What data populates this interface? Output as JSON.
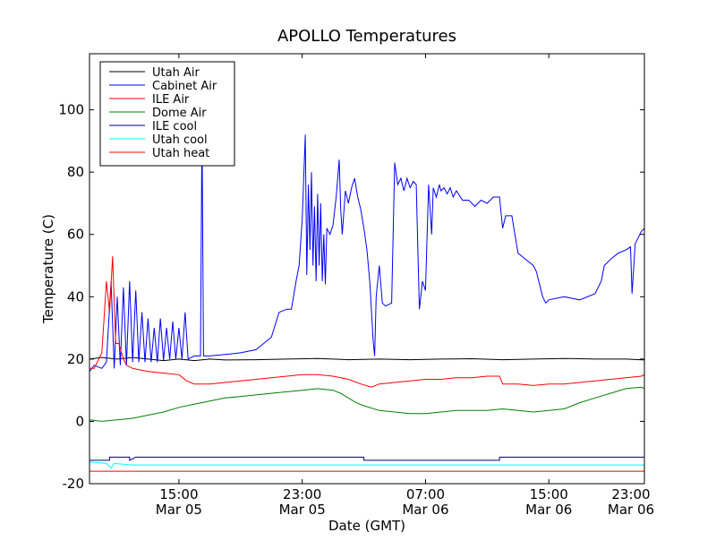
{
  "chart_data": {
    "type": "line",
    "title": "APOLLO Temperatures",
    "xlabel": "Date (GMT)",
    "ylabel": "Temperature (C)",
    "xlim": [
      9.2,
      45.2
    ],
    "ylim": [
      -20,
      118
    ],
    "grid": false,
    "legend_position": "top-left",
    "x_ticks": [
      {
        "x": 15,
        "line1": "15:00",
        "line2": "Mar 05"
      },
      {
        "x": 23,
        "line1": "23:00",
        "line2": "Mar 05"
      },
      {
        "x": 31,
        "line1": "07:00",
        "line2": "Mar 06"
      },
      {
        "x": 39,
        "line1": "15:00",
        "line2": "Mar 06"
      },
      {
        "x": 47,
        "line1": "23:00",
        "line2": "Mar 06"
      }
    ],
    "y_ticks": [
      -20,
      0,
      20,
      40,
      60,
      80,
      100
    ],
    "series": [
      {
        "name": "Utah Air",
        "color": "#000000",
        "points": [
          [
            9.2,
            20
          ],
          [
            10,
            20.5
          ],
          [
            11,
            20
          ],
          [
            12,
            20.5
          ],
          [
            13,
            20
          ],
          [
            14,
            19.5
          ],
          [
            15,
            20
          ],
          [
            16,
            19.5
          ],
          [
            17,
            20
          ],
          [
            18,
            19.7
          ],
          [
            20,
            19.8
          ],
          [
            22,
            20
          ],
          [
            24,
            20.2
          ],
          [
            26,
            19.8
          ],
          [
            28,
            20
          ],
          [
            30,
            19.8
          ],
          [
            32,
            20
          ],
          [
            34,
            20.1
          ],
          [
            36,
            19.8
          ],
          [
            38,
            20
          ],
          [
            40,
            20.2
          ],
          [
            42,
            20
          ],
          [
            44,
            20
          ],
          [
            45.2,
            19.7
          ]
        ]
      },
      {
        "name": "Cabinet Air",
        "color": "#0000ff",
        "points": [
          [
            9.2,
            16
          ],
          [
            9.5,
            18
          ],
          [
            10,
            17
          ],
          [
            10.3,
            19
          ],
          [
            10.6,
            45
          ],
          [
            10.8,
            17
          ],
          [
            11,
            40
          ],
          [
            11.2,
            18
          ],
          [
            11.4,
            43
          ],
          [
            11.6,
            18
          ],
          [
            11.8,
            45
          ],
          [
            12,
            19
          ],
          [
            12.2,
            42
          ],
          [
            12.4,
            19
          ],
          [
            12.6,
            35
          ],
          [
            12.8,
            19
          ],
          [
            13,
            33
          ],
          [
            13.2,
            19
          ],
          [
            13.4,
            30
          ],
          [
            13.6,
            19
          ],
          [
            13.8,
            33
          ],
          [
            14,
            19.5
          ],
          [
            14.2,
            30
          ],
          [
            14.4,
            20
          ],
          [
            14.6,
            32
          ],
          [
            14.8,
            20
          ],
          [
            15,
            30
          ],
          [
            15.2,
            20
          ],
          [
            15.4,
            35
          ],
          [
            15.6,
            20
          ],
          [
            15.8,
            20.5
          ],
          [
            16,
            21
          ],
          [
            16.4,
            21
          ],
          [
            16.5,
            95
          ],
          [
            16.6,
            21
          ],
          [
            17,
            21
          ],
          [
            18,
            21.5
          ],
          [
            19,
            22
          ],
          [
            20,
            23
          ],
          [
            20.5,
            25
          ],
          [
            21,
            27
          ],
          [
            21.5,
            35
          ],
          [
            22,
            36
          ],
          [
            22.3,
            36
          ],
          [
            22.6,
            45
          ],
          [
            22.8,
            50
          ],
          [
            23,
            65
          ],
          [
            23.2,
            92
          ],
          [
            23.3,
            47
          ],
          [
            23.4,
            76
          ],
          [
            23.5,
            55
          ],
          [
            23.6,
            80
          ],
          [
            23.7,
            50
          ],
          [
            23.8,
            69
          ],
          [
            23.9,
            45
          ],
          [
            24,
            73
          ],
          [
            24.1,
            50
          ],
          [
            24.2,
            70
          ],
          [
            24.3,
            45
          ],
          [
            24.4,
            60
          ],
          [
            24.5,
            44
          ],
          [
            24.6,
            62
          ],
          [
            24.8,
            60
          ],
          [
            25,
            63
          ],
          [
            25.2,
            72
          ],
          [
            25.4,
            84
          ],
          [
            25.5,
            68
          ],
          [
            25.6,
            60
          ],
          [
            25.8,
            74
          ],
          [
            26,
            70
          ],
          [
            26.2,
            75
          ],
          [
            26.4,
            78
          ],
          [
            26.6,
            72
          ],
          [
            26.8,
            68
          ],
          [
            27,
            62
          ],
          [
            27.2,
            55
          ],
          [
            27.4,
            44
          ],
          [
            27.6,
            26
          ],
          [
            27.7,
            21
          ],
          [
            27.8,
            40
          ],
          [
            28,
            50
          ],
          [
            28.2,
            38
          ],
          [
            28.4,
            37
          ],
          [
            28.8,
            38
          ],
          [
            29,
            83
          ],
          [
            29.2,
            76
          ],
          [
            29.4,
            78
          ],
          [
            29.6,
            74
          ],
          [
            29.8,
            78
          ],
          [
            30,
            75
          ],
          [
            30.2,
            77
          ],
          [
            30.4,
            76
          ],
          [
            30.5,
            56
          ],
          [
            30.6,
            36
          ],
          [
            30.8,
            45
          ],
          [
            31,
            42
          ],
          [
            31.2,
            76
          ],
          [
            31.4,
            60
          ],
          [
            31.5,
            75
          ],
          [
            31.7,
            72
          ],
          [
            31.9,
            76
          ],
          [
            32,
            74
          ],
          [
            32.2,
            75
          ],
          [
            32.4,
            73
          ],
          [
            32.6,
            75
          ],
          [
            32.8,
            72
          ],
          [
            33,
            74
          ],
          [
            33.4,
            71
          ],
          [
            33.8,
            71
          ],
          [
            34.2,
            69
          ],
          [
            34.6,
            71
          ],
          [
            35,
            70
          ],
          [
            35.4,
            72
          ],
          [
            35.8,
            72
          ],
          [
            36,
            62
          ],
          [
            36.2,
            66
          ],
          [
            36.6,
            66
          ],
          [
            36.8,
            60
          ],
          [
            37,
            54
          ],
          [
            37.5,
            52
          ],
          [
            38,
            50
          ],
          [
            38.2,
            48
          ],
          [
            38.6,
            40
          ],
          [
            38.8,
            38
          ],
          [
            39,
            39
          ],
          [
            40,
            40
          ],
          [
            41,
            39
          ],
          [
            42,
            41
          ],
          [
            42.4,
            45
          ],
          [
            42.6,
            50
          ],
          [
            43,
            52
          ],
          [
            43.5,
            54
          ],
          [
            44,
            55
          ],
          [
            44.3,
            56
          ],
          [
            44.4,
            41
          ],
          [
            44.6,
            57
          ],
          [
            45,
            61
          ],
          [
            45.2,
            62
          ]
        ]
      },
      {
        "name": "ILE Air",
        "color": "#ff0000",
        "points": [
          [
            9.2,
            17
          ],
          [
            9.5,
            17
          ],
          [
            10,
            22
          ],
          [
            10.3,
            45
          ],
          [
            10.5,
            35
          ],
          [
            10.7,
            53
          ],
          [
            10.9,
            25
          ],
          [
            11.1,
            25
          ],
          [
            11.4,
            20
          ],
          [
            11.6,
            18
          ],
          [
            12,
            17
          ],
          [
            13,
            16
          ],
          [
            14,
            15.5
          ],
          [
            15,
            15
          ],
          [
            15.5,
            13
          ],
          [
            16,
            12
          ],
          [
            17,
            12
          ],
          [
            18,
            12.5
          ],
          [
            19,
            13
          ],
          [
            20,
            13.5
          ],
          [
            21,
            14
          ],
          [
            22,
            14.5
          ],
          [
            23,
            15
          ],
          [
            24,
            15
          ],
          [
            25,
            14.5
          ],
          [
            26,
            13.5
          ],
          [
            26.8,
            12
          ],
          [
            27.5,
            11
          ],
          [
            28,
            12
          ],
          [
            29,
            12.5
          ],
          [
            30,
            13
          ],
          [
            31,
            13.5
          ],
          [
            32,
            13.5
          ],
          [
            33,
            14
          ],
          [
            34,
            14
          ],
          [
            35,
            14.5
          ],
          [
            35.8,
            14.5
          ],
          [
            36,
            12
          ],
          [
            37,
            12
          ],
          [
            38,
            11.5
          ],
          [
            39,
            12
          ],
          [
            40,
            12
          ],
          [
            41,
            12.5
          ],
          [
            42,
            13
          ],
          [
            43,
            13.5
          ],
          [
            44,
            14
          ],
          [
            45,
            14.5
          ],
          [
            45.2,
            15
          ]
        ]
      },
      {
        "name": "Dome Air",
        "color": "#008000",
        "points": [
          [
            9.2,
            0.5
          ],
          [
            10,
            0
          ],
          [
            11,
            0.5
          ],
          [
            12,
            1
          ],
          [
            13,
            2
          ],
          [
            14,
            3
          ],
          [
            15,
            4.5
          ],
          [
            16,
            5.5
          ],
          [
            17,
            6.5
          ],
          [
            18,
            7.5
          ],
          [
            19,
            8
          ],
          [
            20,
            8.5
          ],
          [
            21,
            9
          ],
          [
            22,
            9.5
          ],
          [
            23,
            10
          ],
          [
            24,
            10.5
          ],
          [
            25,
            10
          ],
          [
            25.5,
            9
          ],
          [
            26,
            7.5
          ],
          [
            26.5,
            6
          ],
          [
            27,
            5
          ],
          [
            28,
            3.5
          ],
          [
            29,
            3
          ],
          [
            30,
            2.5
          ],
          [
            31,
            2.5
          ],
          [
            32,
            3
          ],
          [
            33,
            3.5
          ],
          [
            34,
            3.5
          ],
          [
            35,
            3.5
          ],
          [
            36,
            4
          ],
          [
            37,
            3.5
          ],
          [
            38,
            3
          ],
          [
            39,
            3.5
          ],
          [
            40,
            4
          ],
          [
            41,
            6
          ],
          [
            42,
            7.5
          ],
          [
            43,
            9
          ],
          [
            44,
            10.5
          ],
          [
            45,
            11
          ],
          [
            45.2,
            10.5
          ]
        ]
      },
      {
        "name": "ILE cool",
        "color": "#000080",
        "points": [
          [
            9.2,
            -12.5
          ],
          [
            10.5,
            -12.5
          ],
          [
            10.5,
            -11.5
          ],
          [
            11.8,
            -11.5
          ],
          [
            11.8,
            -12.5
          ],
          [
            12.2,
            -11.5
          ],
          [
            15.5,
            -11.5
          ],
          [
            16,
            -11.5
          ],
          [
            23,
            -11.5
          ],
          [
            27,
            -11.5
          ],
          [
            27,
            -12.5
          ],
          [
            35.8,
            -12.5
          ],
          [
            35.8,
            -11.5
          ],
          [
            45.2,
            -11.5
          ]
        ]
      },
      {
        "name": "Utah cool",
        "color": "#00ffff",
        "points": [
          [
            9.2,
            -13
          ],
          [
            10.3,
            -13.5
          ],
          [
            10.6,
            -15
          ],
          [
            10.8,
            -13.5
          ],
          [
            12,
            -14
          ],
          [
            16,
            -14
          ],
          [
            20,
            -14
          ],
          [
            24,
            -14
          ],
          [
            28,
            -14
          ],
          [
            32,
            -14
          ],
          [
            36,
            -14
          ],
          [
            40,
            -14
          ],
          [
            45.2,
            -14
          ]
        ]
      },
      {
        "name": "Utah heat",
        "color": "#ff0000",
        "points": [
          [
            9.2,
            -16
          ],
          [
            45.2,
            -16
          ]
        ]
      }
    ]
  }
}
